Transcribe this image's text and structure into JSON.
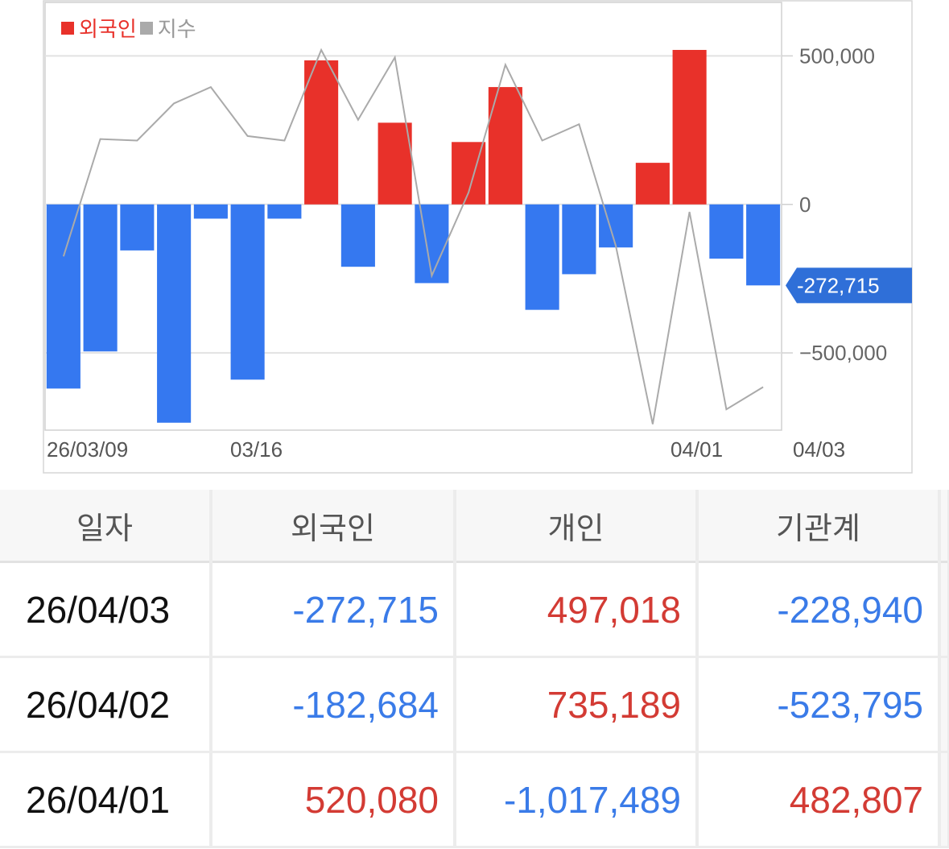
{
  "chart_data": {
    "type": "bar",
    "legend": [
      {
        "name": "외국인",
        "color": "#e8312a"
      },
      {
        "name": "지수",
        "color": "#aaaaaa"
      }
    ],
    "x_tick_labels": [
      "26/03/09",
      "03/16",
      "04/01",
      "04/03"
    ],
    "y_ticks": [
      500000,
      0,
      -500000
    ],
    "y_tick_labels": [
      "500,000",
      "0",
      "−500,000"
    ],
    "ylim": [
      -760000,
      680000
    ],
    "series": [
      {
        "name": "외국인",
        "type": "bar",
        "values": [
          -620000,
          -495000,
          -155000,
          -735000,
          -48000,
          -590000,
          -48000,
          485000,
          -210000,
          275000,
          -265000,
          210000,
          395000,
          -355000,
          -235000,
          -145000,
          140000,
          520080,
          -182684,
          -272715
        ]
      },
      {
        "name": "지수",
        "type": "line",
        "values": [
          -175000,
          220000,
          215000,
          340000,
          395000,
          230000,
          215000,
          520000,
          285000,
          495000,
          -240000,
          40000,
          470000,
          215000,
          270000,
          -140000,
          -740000,
          -25000,
          -690000,
          -615000
        ]
      }
    ],
    "current_value_label": "-272,715",
    "colors": {
      "positive": "#e8312a",
      "negative": "#3578f0",
      "index_line": "#aaaaaa",
      "badge": "#2f6fd8"
    }
  },
  "table": {
    "headers": [
      "일자",
      "외국인",
      "개인",
      "기관계"
    ],
    "rows": [
      {
        "date": "26/04/03",
        "foreign": "-272,715",
        "individual": "497,018",
        "institution": "-228,940"
      },
      {
        "date": "26/04/02",
        "foreign": "-182,684",
        "individual": "735,189",
        "institution": "-523,795"
      },
      {
        "date": "26/04/01",
        "foreign": "520,080",
        "individual": "-1,017,489",
        "institution": "482,807"
      }
    ]
  }
}
